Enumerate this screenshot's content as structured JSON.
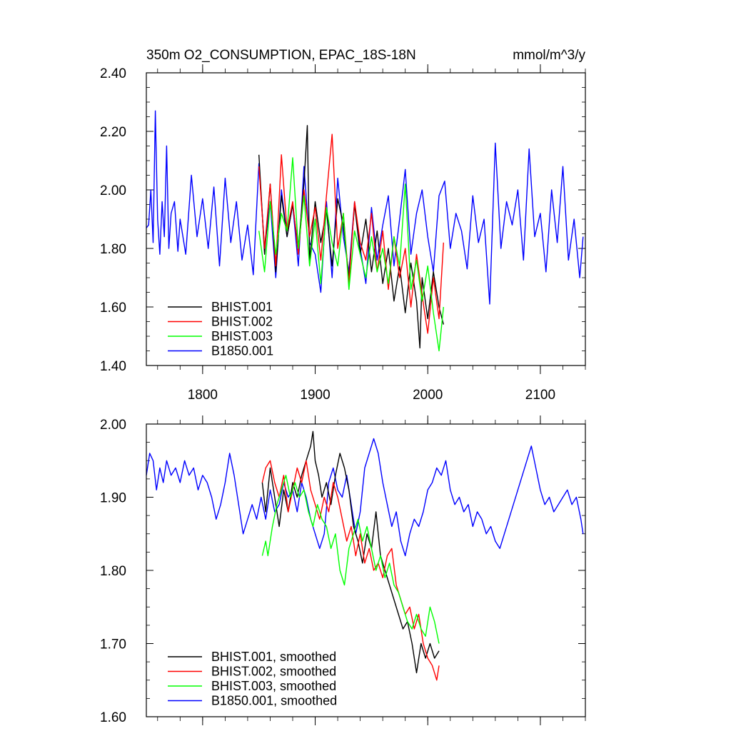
{
  "chart_data": [
    {
      "type": "line",
      "title": "350m O2_CONSUMPTION, EPAC_18S-18N",
      "units": "mmol/m^3/y",
      "xlabel": "",
      "ylabel": "",
      "xlim": [
        1750,
        2140
      ],
      "ylim": [
        1.4,
        2.4
      ],
      "x_ticks": [
        1800,
        1900,
        2000,
        2100
      ],
      "y_ticks": [
        1.4,
        1.6,
        1.8,
        2.0,
        2.2,
        2.4
      ],
      "x_tick_labels": [
        "1800",
        "1900",
        "2000",
        "2100"
      ],
      "y_tick_labels": [
        "1.40",
        "1.60",
        "1.80",
        "2.00",
        "2.20",
        "2.40"
      ],
      "legend_position": "bottom-left",
      "series": [
        {
          "name": "BHIST.001",
          "color": "#000000",
          "x": [
            1850,
            1855,
            1860,
            1865,
            1870,
            1875,
            1880,
            1885,
            1890,
            1893,
            1895,
            1900,
            1905,
            1910,
            1915,
            1920,
            1925,
            1930,
            1935,
            1940,
            1945,
            1950,
            1955,
            1960,
            1965,
            1970,
            1975,
            1980,
            1985,
            1990,
            1993,
            1995,
            2000,
            2005,
            2010,
            2014
          ],
          "y": [
            2.12,
            1.78,
            2.02,
            1.72,
            1.98,
            1.84,
            1.95,
            1.8,
            2.02,
            2.22,
            1.76,
            1.96,
            1.82,
            1.93,
            1.74,
            1.97,
            1.88,
            1.7,
            1.95,
            1.78,
            1.9,
            1.72,
            1.86,
            1.68,
            1.8,
            1.62,
            1.74,
            1.58,
            1.75,
            1.62,
            1.46,
            1.7,
            1.56,
            1.72,
            1.6,
            1.54
          ]
        },
        {
          "name": "BHIST.002",
          "color": "#ff0000",
          "x": [
            1850,
            1855,
            1860,
            1865,
            1870,
            1875,
            1880,
            1885,
            1890,
            1895,
            1900,
            1905,
            1910,
            1915,
            1920,
            1925,
            1930,
            1935,
            1940,
            1945,
            1950,
            1955,
            1960,
            1965,
            1970,
            1975,
            1980,
            1985,
            1990,
            1995,
            2000,
            2005,
            2010,
            2014
          ],
          "y": [
            2.08,
            1.8,
            2.02,
            1.74,
            2.12,
            1.86,
            1.96,
            1.78,
            2.0,
            1.84,
            1.94,
            1.76,
            1.98,
            2.19,
            1.8,
            1.92,
            1.68,
            1.96,
            1.82,
            1.76,
            1.92,
            1.72,
            1.86,
            1.66,
            1.84,
            1.7,
            1.8,
            1.6,
            1.78,
            1.64,
            1.51,
            1.7,
            1.56,
            1.82
          ]
        },
        {
          "name": "BHIST.003",
          "color": "#00ff00",
          "x": [
            1850,
            1855,
            1860,
            1865,
            1870,
            1875,
            1880,
            1885,
            1890,
            1895,
            1900,
            1905,
            1910,
            1915,
            1920,
            1925,
            1930,
            1935,
            1940,
            1945,
            1950,
            1955,
            1960,
            1965,
            1970,
            1975,
            1980,
            1985,
            1990,
            1995,
            2000,
            2005,
            2010,
            2014
          ],
          "y": [
            1.86,
            1.72,
            1.96,
            1.78,
            1.92,
            1.86,
            2.11,
            1.8,
            1.98,
            1.74,
            1.9,
            1.68,
            1.94,
            1.82,
            1.74,
            1.92,
            1.66,
            1.86,
            1.78,
            1.7,
            1.84,
            1.72,
            1.8,
            1.68,
            1.84,
            1.74,
            2.02,
            1.66,
            1.76,
            1.62,
            1.74,
            1.58,
            1.45,
            1.6
          ]
        },
        {
          "name": "B1850.001",
          "color": "#0000ff",
          "x": [
            1750,
            1752,
            1754,
            1756,
            1758,
            1760,
            1762,
            1764,
            1766,
            1768,
            1770,
            1772,
            1775,
            1778,
            1780,
            1785,
            1790,
            1795,
            1800,
            1805,
            1810,
            1815,
            1820,
            1825,
            1830,
            1835,
            1840,
            1845,
            1850,
            1855,
            1860,
            1865,
            1870,
            1875,
            1880,
            1885,
            1890,
            1895,
            1900,
            1905,
            1910,
            1915,
            1920,
            1925,
            1930,
            1935,
            1940,
            1945,
            1950,
            1955,
            1960,
            1965,
            1970,
            1975,
            1980,
            1985,
            1990,
            1995,
            2000,
            2005,
            2010,
            2015,
            2020,
            2025,
            2030,
            2035,
            2040,
            2045,
            2050,
            2055,
            2060,
            2065,
            2070,
            2075,
            2080,
            2085,
            2090,
            2095,
            2100,
            2105,
            2110,
            2115,
            2120,
            2125,
            2130,
            2135,
            2138
          ],
          "y": [
            1.87,
            1.88,
            2.0,
            1.82,
            2.27,
            1.9,
            1.78,
            1.96,
            1.84,
            2.15,
            1.8,
            1.92,
            1.96,
            1.79,
            1.9,
            1.78,
            2.05,
            1.84,
            1.97,
            1.8,
            2.01,
            1.74,
            2.04,
            1.82,
            1.96,
            1.76,
            1.88,
            1.71,
            2.09,
            1.8,
            1.96,
            1.7,
            2.0,
            1.84,
            1.95,
            1.74,
            2.08,
            1.82,
            1.78,
            1.65,
            1.96,
            1.7,
            2.04,
            1.84,
            1.72,
            1.96,
            1.8,
            1.68,
            1.94,
            1.76,
            1.88,
            1.98,
            1.74,
            1.9,
            2.07,
            1.78,
            1.92,
            2.0,
            1.84,
            1.72,
            1.98,
            2.03,
            1.8,
            1.92,
            1.86,
            1.73,
            1.98,
            1.82,
            1.9,
            1.61,
            2.16,
            1.8,
            1.96,
            1.88,
            2.0,
            1.76,
            2.14,
            1.84,
            1.92,
            1.72,
            2.0,
            1.82,
            2.08,
            1.76,
            1.9,
            1.7,
            1.84
          ]
        }
      ]
    },
    {
      "type": "line",
      "title": "",
      "xlabel": "",
      "ylabel": "",
      "xlim": [
        1750,
        2140
      ],
      "ylim": [
        1.6,
        2.0
      ],
      "x_ticks": [
        1800,
        1900,
        2000,
        2100
      ],
      "y_ticks": [
        1.6,
        1.7,
        1.8,
        1.9,
        2.0
      ],
      "x_tick_labels": [],
      "y_tick_labels": [
        "1.60",
        "1.70",
        "1.80",
        "1.90",
        "2.00"
      ],
      "legend_position": "bottom-left",
      "series": [
        {
          "name": "BHIST.001, smoothed",
          "color": "#000000",
          "x": [
            1853,
            1856,
            1860,
            1864,
            1868,
            1872,
            1876,
            1880,
            1884,
            1888,
            1892,
            1896,
            1898,
            1900,
            1903,
            1906,
            1910,
            1914,
            1918,
            1922,
            1926,
            1930,
            1934,
            1938,
            1942,
            1946,
            1950,
            1954,
            1958,
            1962,
            1966,
            1970,
            1974,
            1978,
            1982,
            1986,
            1990,
            1994,
            1998,
            2002,
            2006,
            2010
          ],
          "y": [
            1.92,
            1.88,
            1.94,
            1.9,
            1.86,
            1.91,
            1.88,
            1.92,
            1.9,
            1.93,
            1.95,
            1.97,
            1.99,
            1.95,
            1.93,
            1.9,
            1.92,
            1.89,
            1.93,
            1.96,
            1.94,
            1.91,
            1.86,
            1.84,
            1.81,
            1.85,
            1.83,
            1.88,
            1.82,
            1.8,
            1.78,
            1.76,
            1.74,
            1.72,
            1.73,
            1.7,
            1.66,
            1.7,
            1.68,
            1.7,
            1.68,
            1.69
          ]
        },
        {
          "name": "BHIST.002, smoothed",
          "color": "#ff0000",
          "x": [
            1853,
            1856,
            1860,
            1864,
            1868,
            1872,
            1876,
            1880,
            1884,
            1888,
            1892,
            1896,
            1900,
            1904,
            1908,
            1912,
            1916,
            1920,
            1924,
            1928,
            1932,
            1936,
            1940,
            1944,
            1948,
            1952,
            1956,
            1960,
            1964,
            1968,
            1972,
            1976,
            1980,
            1984,
            1988,
            1992,
            1996,
            2000,
            2004,
            2008,
            2010
          ],
          "y": [
            1.92,
            1.94,
            1.95,
            1.92,
            1.9,
            1.93,
            1.88,
            1.91,
            1.94,
            1.92,
            1.95,
            1.91,
            1.89,
            1.87,
            1.9,
            1.88,
            1.92,
            1.9,
            1.87,
            1.84,
            1.86,
            1.82,
            1.85,
            1.81,
            1.83,
            1.8,
            1.81,
            1.79,
            1.82,
            1.83,
            1.78,
            1.76,
            1.74,
            1.75,
            1.72,
            1.74,
            1.7,
            1.68,
            1.67,
            1.65,
            1.67
          ]
        },
        {
          "name": "BHIST.003, smoothed",
          "color": "#00ff00",
          "x": [
            1853,
            1856,
            1858,
            1862,
            1866,
            1870,
            1874,
            1878,
            1882,
            1886,
            1890,
            1894,
            1898,
            1902,
            1906,
            1910,
            1914,
            1918,
            1922,
            1926,
            1930,
            1934,
            1938,
            1942,
            1946,
            1950,
            1954,
            1958,
            1962,
            1966,
            1970,
            1974,
            1978,
            1982,
            1986,
            1990,
            1994,
            1998,
            2002,
            2006,
            2010
          ],
          "y": [
            1.82,
            1.84,
            1.82,
            1.86,
            1.89,
            1.91,
            1.93,
            1.9,
            1.92,
            1.9,
            1.91,
            1.88,
            1.86,
            1.89,
            1.87,
            1.86,
            1.83,
            1.85,
            1.8,
            1.78,
            1.83,
            1.85,
            1.87,
            1.84,
            1.86,
            1.83,
            1.8,
            1.82,
            1.79,
            1.81,
            1.78,
            1.77,
            1.75,
            1.73,
            1.72,
            1.74,
            1.72,
            1.71,
            1.75,
            1.73,
            1.7
          ]
        },
        {
          "name": "B1850.001, smoothed",
          "color": "#0000ff",
          "x": [
            1750,
            1753,
            1756,
            1759,
            1762,
            1765,
            1768,
            1772,
            1776,
            1780,
            1784,
            1788,
            1792,
            1796,
            1800,
            1804,
            1808,
            1812,
            1816,
            1820,
            1824,
            1828,
            1832,
            1836,
            1840,
            1844,
            1848,
            1852,
            1856,
            1860,
            1864,
            1868,
            1872,
            1876,
            1880,
            1884,
            1888,
            1892,
            1896,
            1900,
            1904,
            1908,
            1912,
            1916,
            1920,
            1924,
            1928,
            1932,
            1936,
            1940,
            1944,
            1948,
            1952,
            1956,
            1960,
            1964,
            1968,
            1972,
            1976,
            1980,
            1984,
            1988,
            1992,
            1996,
            2000,
            2004,
            2008,
            2012,
            2016,
            2020,
            2024,
            2028,
            2032,
            2036,
            2040,
            2044,
            2048,
            2052,
            2056,
            2060,
            2064,
            2068,
            2072,
            2076,
            2080,
            2084,
            2088,
            2092,
            2096,
            2100,
            2104,
            2108,
            2112,
            2116,
            2120,
            2124,
            2128,
            2132,
            2136,
            2138
          ],
          "y": [
            1.93,
            1.96,
            1.95,
            1.91,
            1.94,
            1.92,
            1.95,
            1.93,
            1.94,
            1.92,
            1.95,
            1.93,
            1.94,
            1.91,
            1.93,
            1.92,
            1.9,
            1.87,
            1.89,
            1.92,
            1.96,
            1.93,
            1.89,
            1.85,
            1.87,
            1.89,
            1.87,
            1.9,
            1.87,
            1.91,
            1.88,
            1.89,
            1.92,
            1.9,
            1.91,
            1.88,
            1.92,
            1.9,
            1.87,
            1.85,
            1.83,
            1.85,
            1.92,
            1.94,
            1.91,
            1.9,
            1.93,
            1.89,
            1.85,
            1.88,
            1.94,
            1.96,
            1.98,
            1.96,
            1.92,
            1.89,
            1.86,
            1.88,
            1.84,
            1.82,
            1.85,
            1.87,
            1.86,
            1.88,
            1.91,
            1.92,
            1.94,
            1.93,
            1.95,
            1.91,
            1.89,
            1.9,
            1.88,
            1.89,
            1.86,
            1.88,
            1.87,
            1.85,
            1.86,
            1.84,
            1.83,
            1.85,
            1.87,
            1.89,
            1.91,
            1.93,
            1.95,
            1.97,
            1.94,
            1.91,
            1.89,
            1.9,
            1.88,
            1.89,
            1.9,
            1.91,
            1.89,
            1.9,
            1.87,
            1.85
          ]
        }
      ]
    }
  ]
}
